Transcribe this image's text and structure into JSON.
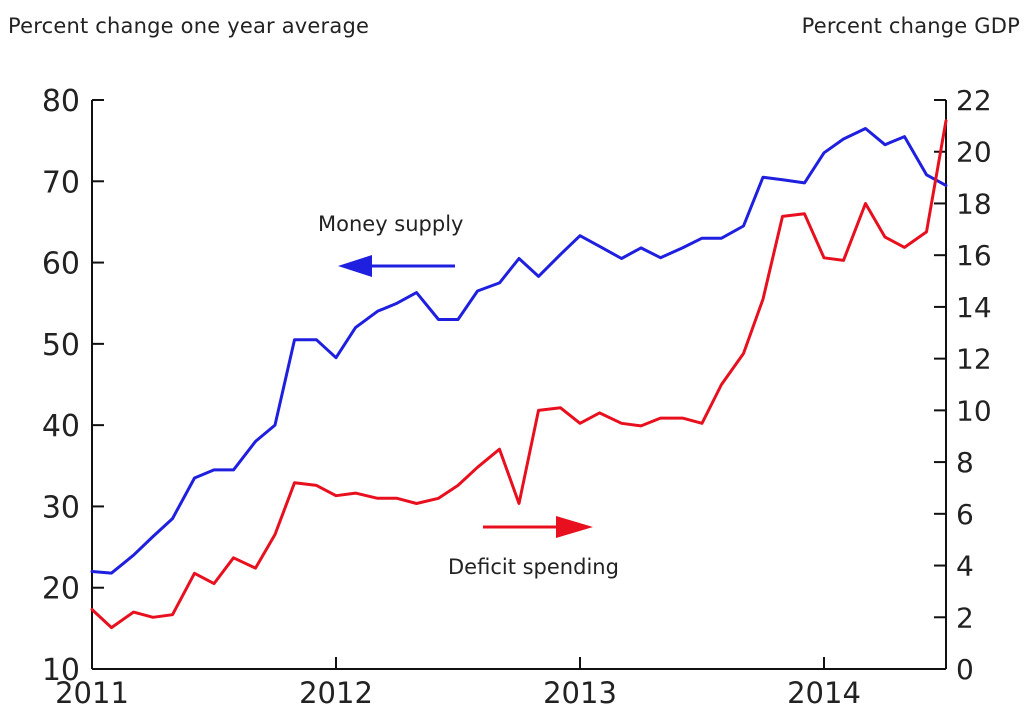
{
  "chart_data": {
    "type": "line",
    "left_axis_title": "Percent change one year average",
    "right_axis_title": "Percent change GDP",
    "ylim_left": [
      10,
      80
    ],
    "yticks_left": [
      "10",
      "20",
      "30",
      "40",
      "50",
      "60",
      "70",
      "80"
    ],
    "ylim_right": [
      0,
      22
    ],
    "yticks_right": [
      "0",
      "2",
      "4",
      "6",
      "8",
      "10",
      "12",
      "14",
      "16",
      "18",
      "20",
      "22"
    ],
    "xlim": [
      2011,
      2014.5
    ],
    "xticks": [
      "2011",
      "2012",
      "2013",
      "2014"
    ],
    "grid": false,
    "series": [
      {
        "name": "Money supply",
        "axis": "left",
        "color": "#1f1fe0",
        "x": [
          2011.0,
          2011.08,
          2011.17,
          2011.25,
          2011.33,
          2011.42,
          2011.5,
          2011.58,
          2011.67,
          2011.75,
          2011.83,
          2011.92,
          2012.0,
          2012.08,
          2012.17,
          2012.25,
          2012.33,
          2012.42,
          2012.5,
          2012.58,
          2012.67,
          2012.75,
          2012.83,
          2012.92,
          2013.0,
          2013.08,
          2013.17,
          2013.25,
          2013.33,
          2013.42,
          2013.5,
          2013.58,
          2013.67,
          2013.75,
          2013.83,
          2013.92,
          2014.0,
          2014.08,
          2014.17,
          2014.25,
          2014.33,
          2014.42,
          2014.5
        ],
        "y": [
          22,
          21.8,
          24,
          26.3,
          28.5,
          33.5,
          34.5,
          34.5,
          38,
          40,
          50.5,
          50.5,
          48.3,
          52,
          54,
          55,
          56.3,
          53,
          53,
          56.5,
          57.5,
          60.5,
          58.3,
          61,
          63.3,
          62,
          60.5,
          61.8,
          60.6,
          61.8,
          63,
          63,
          64.5,
          70.5,
          70.2,
          69.8,
          73.5,
          75.2,
          76.5,
          74.5,
          75.5,
          70.8,
          69.5
        ]
      },
      {
        "name": "Deficit spending",
        "axis": "right",
        "color": "#e8101e",
        "x": [
          2011.0,
          2011.08,
          2011.17,
          2011.25,
          2011.33,
          2011.42,
          2011.5,
          2011.58,
          2011.67,
          2011.75,
          2011.83,
          2011.92,
          2012.0,
          2012.08,
          2012.17,
          2012.25,
          2012.33,
          2012.42,
          2012.5,
          2012.58,
          2012.67,
          2012.75,
          2012.83,
          2012.92,
          2013.0,
          2013.08,
          2013.17,
          2013.25,
          2013.33,
          2013.42,
          2013.5,
          2013.58,
          2013.67,
          2013.75,
          2013.83,
          2013.92,
          2014.0,
          2014.08,
          2014.17,
          2014.25,
          2014.33,
          2014.42,
          2014.5
        ],
        "y": [
          2.3,
          1.6,
          2.2,
          2.0,
          2.1,
          3.7,
          3.3,
          4.3,
          3.9,
          5.2,
          7.2,
          7.1,
          6.7,
          6.8,
          6.6,
          6.6,
          6.4,
          6.6,
          7.1,
          7.8,
          8.5,
          6.4,
          10.0,
          10.1,
          9.5,
          9.9,
          9.5,
          9.4,
          9.7,
          9.7,
          9.5,
          11.0,
          12.2,
          14.3,
          17.5,
          17.6,
          15.9,
          15.8,
          18.0,
          16.7,
          16.3,
          16.9,
          21.2
        ]
      }
    ],
    "annotations": [
      {
        "text": "Money supply",
        "arrow": "left",
        "color": "#1f1fe0"
      },
      {
        "text": "Deficit spending",
        "arrow": "right",
        "color": "#e8101e"
      }
    ]
  }
}
